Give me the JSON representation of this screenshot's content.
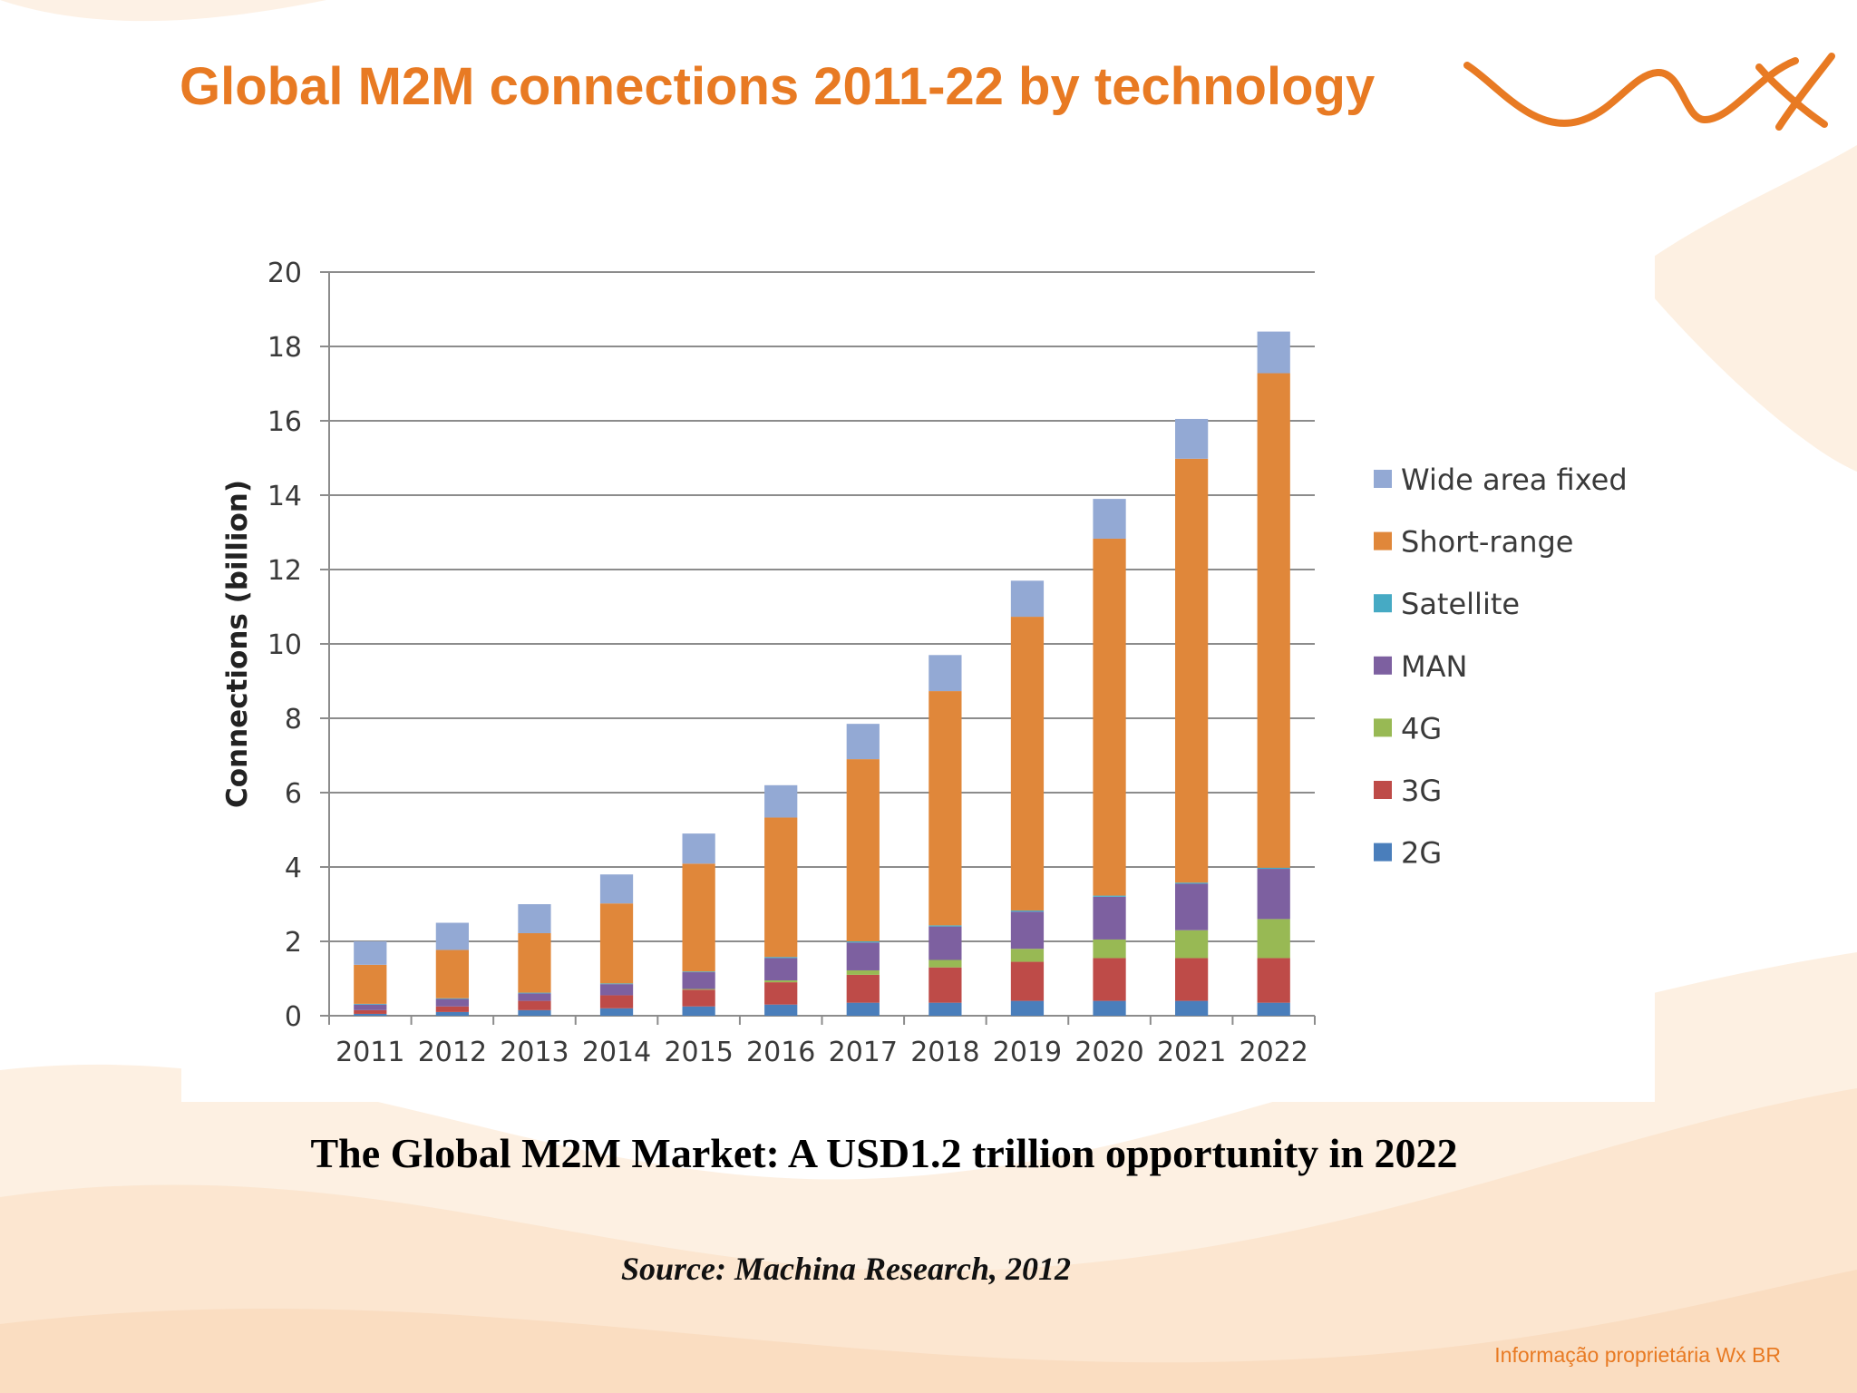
{
  "slide": {
    "title": "Global M2M connections 2011-22 by technology",
    "subtitle": "The Global M2M Market: A USD1.2 trillion opportunity in 2022",
    "source": "Source: Machina Research, 2012",
    "footer": "Informação proprietária Wx BR"
  },
  "logo": {
    "icon": "wx-logo-icon",
    "color": "#e87a23"
  },
  "colors": {
    "accent": "#e87a23",
    "background_swoosh": "#fbe3cc"
  },
  "chart_data": {
    "type": "bar",
    "stacked": true,
    "ylabel": "Connections (billion)",
    "xlabel": "",
    "ylim": [
      0,
      20
    ],
    "yticks": [
      0,
      2,
      4,
      6,
      8,
      10,
      12,
      14,
      16,
      18,
      20
    ],
    "grid": true,
    "legend_position": "right",
    "categories": [
      "2011",
      "2012",
      "2013",
      "2014",
      "2015",
      "2016",
      "2017",
      "2018",
      "2019",
      "2020",
      "2021",
      "2022"
    ],
    "series": [
      {
        "name": "2G",
        "color": "#4a7ebb",
        "values": [
          0.05,
          0.1,
          0.15,
          0.2,
          0.25,
          0.3,
          0.35,
          0.35,
          0.4,
          0.4,
          0.4,
          0.35
        ]
      },
      {
        "name": "3G",
        "color": "#be4b48",
        "values": [
          0.1,
          0.15,
          0.25,
          0.35,
          0.45,
          0.6,
          0.75,
          0.95,
          1.05,
          1.15,
          1.15,
          1.2
        ]
      },
      {
        "name": "4G",
        "color": "#98b954",
        "values": [
          0,
          0,
          0,
          0,
          0.02,
          0.05,
          0.12,
          0.2,
          0.35,
          0.5,
          0.75,
          1.05
        ]
      },
      {
        "name": "MAN",
        "color": "#7d60a0",
        "values": [
          0.15,
          0.2,
          0.2,
          0.3,
          0.45,
          0.6,
          0.75,
          0.9,
          1.0,
          1.15,
          1.25,
          1.35
        ]
      },
      {
        "name": "Satellite",
        "color": "#46aac4",
        "values": [
          0.02,
          0.02,
          0.02,
          0.02,
          0.02,
          0.03,
          0.03,
          0.03,
          0.03,
          0.03,
          0.03,
          0.03
        ]
      },
      {
        "name": "Short-range",
        "color": "#e0873a",
        "values": [
          1.05,
          1.3,
          1.6,
          2.15,
          2.9,
          3.75,
          4.9,
          6.3,
          7.9,
          9.6,
          11.4,
          13.3
        ]
      },
      {
        "name": "Wide area fixed",
        "color": "#93a9d4",
        "values": [
          0.63,
          0.73,
          0.78,
          0.78,
          0.81,
          0.87,
          0.95,
          0.97,
          0.97,
          1.07,
          1.07,
          1.12
        ]
      }
    ],
    "legend_order": [
      "Wide area fixed",
      "Short-range",
      "Satellite",
      "MAN",
      "4G",
      "3G",
      "2G"
    ]
  }
}
